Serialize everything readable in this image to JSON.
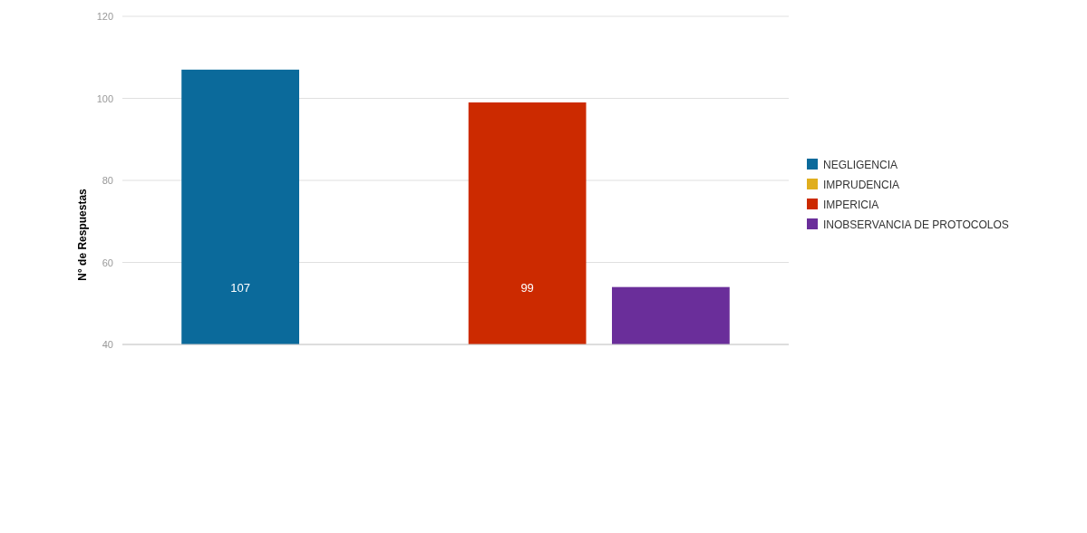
{
  "chart_data": {
    "type": "bar",
    "ylabel": "N° de Respuestas",
    "categories": [
      null
    ],
    "series": [
      {
        "name": "NEGLIGENCIA",
        "color": "#0b6a9b",
        "values": [
          107
        ],
        "value_labels": [
          "107"
        ]
      },
      {
        "name": "IMPRUDENCIA",
        "color": "#e0ae1e",
        "values": [
          null
        ]
      },
      {
        "name": "IMPERICIA",
        "color": "#cc2a00",
        "values": [
          99
        ],
        "value_labels": [
          "99"
        ]
      },
      {
        "name": "INOBSERVANCIA DE PROTOCOLOS",
        "color": "#6a2e9a",
        "values": [
          54
        ]
      }
    ],
    "ylim": [
      40,
      120
    ],
    "yticks": [
      40,
      60,
      80,
      100,
      120
    ],
    "grid": "y",
    "legend": "right"
  }
}
